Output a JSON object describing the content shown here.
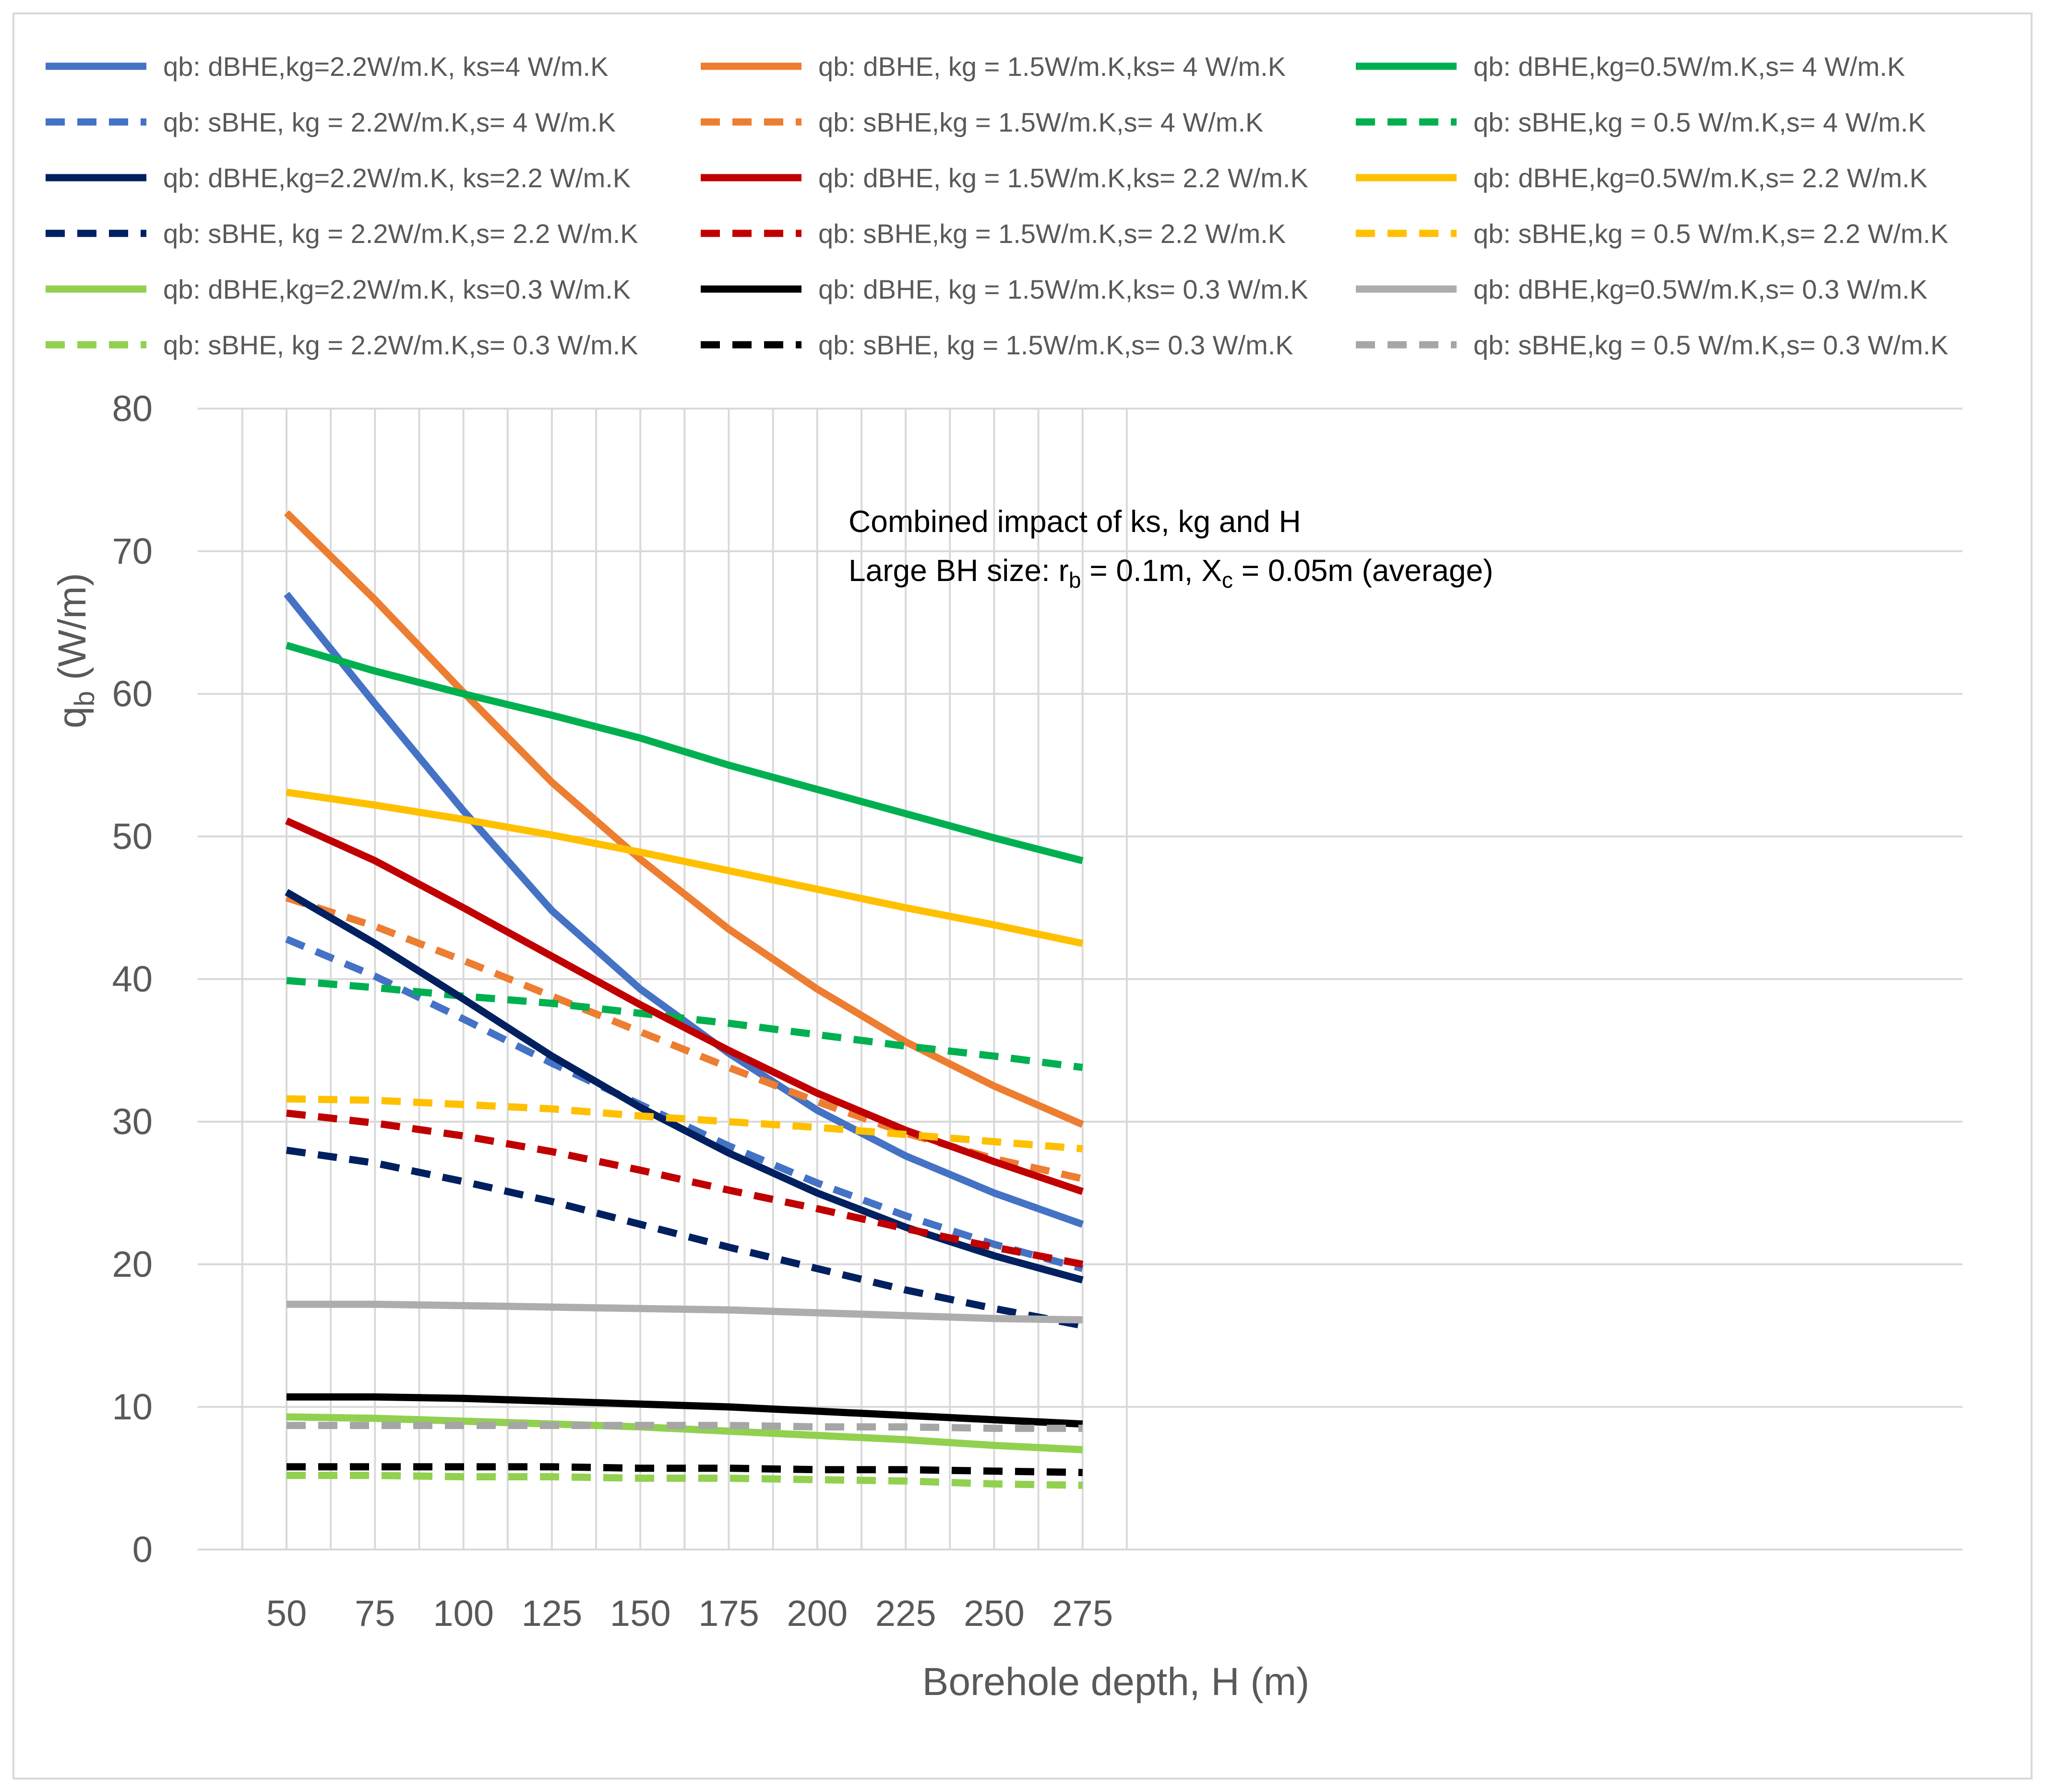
{
  "chart_data": {
    "type": "line",
    "title": "",
    "xlabel": "Borehole depth, H (m)",
    "ylabel": {
      "main": "q",
      "sub": "b",
      "unit": " (W/m)"
    },
    "x": [
      50,
      75,
      100,
      125,
      150,
      175,
      200,
      225,
      250,
      275
    ],
    "xlim": [
      37.5,
      287.5
    ],
    "ylim": [
      0,
      80
    ],
    "x_ticks": [
      50,
      75,
      100,
      125,
      150,
      175,
      200,
      225,
      250,
      275
    ],
    "y_ticks": [
      0,
      10,
      20,
      30,
      40,
      50,
      60,
      70,
      80
    ],
    "grid": true,
    "legend_position": "top",
    "annotation": {
      "line1": "Combined impact of ks, kg and H",
      "line2_a": "Large BH size: r",
      "line2_sub1": "b",
      "line2_b": " = 0.1m, X",
      "line2_sub2": "c",
      "line2_c": " = 0.05m (average)"
    },
    "series": [
      {
        "name": "qb: dBHE,kg=2.2W/m.K, ks=4 W/m.K",
        "color": "#4472C4",
        "dash": false,
        "values": [
          67.0,
          59.3,
          51.8,
          44.8,
          39.3,
          34.8,
          30.8,
          27.6,
          25.0,
          22.8
        ]
      },
      {
        "name": "qb: dBHE, kg = 1.5W/m.K,ks= 4 W/m.K",
        "color": "#ED7D31",
        "dash": false,
        "values": [
          72.7,
          66.6,
          60.1,
          53.8,
          48.4,
          43.5,
          39.3,
          35.6,
          32.5,
          29.8
        ]
      },
      {
        "name": "qb: dBHE,kg=0.5W/m.K,s= 4 W/m.K",
        "color": "#00B050",
        "dash": false,
        "values": [
          63.4,
          61.6,
          60.0,
          58.5,
          56.9,
          55.0,
          53.3,
          51.6,
          49.9,
          48.3
        ]
      },
      {
        "name": "qb: sBHE, kg = 2.2W/m.K,s= 4 W/m.K",
        "color": "#4472C4",
        "dash": true,
        "values": [
          42.8,
          40.2,
          37.2,
          34.1,
          31.2,
          28.3,
          25.7,
          23.4,
          21.4,
          19.7
        ]
      },
      {
        "name": "qb: sBHE,kg = 1.5W/m.K,s= 4 W/m.K",
        "color": "#ED7D31",
        "dash": true,
        "values": [
          45.7,
          43.7,
          41.3,
          38.8,
          36.3,
          33.8,
          31.4,
          29.2,
          27.4,
          26.0
        ]
      },
      {
        "name": "qb: sBHE,kg = 0.5 W/m.K,s= 4 W/m.K",
        "color": "#00B050",
        "dash": true,
        "values": [
          39.9,
          39.4,
          38.8,
          38.3,
          37.6,
          36.9,
          36.1,
          35.3,
          34.6,
          33.8
        ]
      },
      {
        "name": "qb: dBHE,kg=2.2W/m.K, ks=2.2 W/m.K",
        "color": "#002060",
        "dash": false,
        "values": [
          46.1,
          42.5,
          38.6,
          34.6,
          31.0,
          27.8,
          25.0,
          22.6,
          20.6,
          18.9
        ]
      },
      {
        "name": "qb: dBHE, kg = 1.5W/m.K,ks= 2.2 W/m.K",
        "color": "#C00000",
        "dash": false,
        "values": [
          51.1,
          48.3,
          45.0,
          41.6,
          38.2,
          35.0,
          32.0,
          29.4,
          27.2,
          25.1
        ]
      },
      {
        "name": "qb: dBHE,kg=0.5W/m.K,s= 2.2 W/m.K",
        "color": "#FFC000",
        "dash": false,
        "values": [
          53.1,
          52.2,
          51.2,
          50.1,
          48.9,
          47.6,
          46.3,
          45.0,
          43.8,
          42.5
        ]
      },
      {
        "name": "qb: sBHE, kg = 2.2W/m.K,s= 2.2 W/m.K",
        "color": "#002060",
        "dash": true,
        "values": [
          28.0,
          27.1,
          25.8,
          24.4,
          22.8,
          21.2,
          19.7,
          18.2,
          16.9,
          15.7
        ]
      },
      {
        "name": "qb: sBHE,kg = 1.5W/m.K,s= 2.2 W/m.K",
        "color": "#C00000",
        "dash": true,
        "values": [
          30.6,
          29.9,
          29.0,
          27.9,
          26.6,
          25.2,
          23.9,
          22.5,
          21.2,
          20.0
        ]
      },
      {
        "name": "qb: sBHE,kg = 0.5 W/m.K,s= 2.2 W/m.K",
        "color": "#FFC000",
        "dash": true,
        "values": [
          31.6,
          31.5,
          31.2,
          30.9,
          30.4,
          30.0,
          29.6,
          29.1,
          28.6,
          28.1
        ]
      },
      {
        "name": "qb: dBHE,kg=2.2W/m.K, ks=0.3 W/m.K",
        "color": "#92D050",
        "dash": false,
        "values": [
          9.3,
          9.2,
          9.0,
          8.8,
          8.6,
          8.3,
          8.0,
          7.7,
          7.3,
          7.0
        ]
      },
      {
        "name": "qb: dBHE, kg = 1.5W/m.K,ks= 0.3 W/m.K",
        "color": "#000000",
        "dash": false,
        "values": [
          10.7,
          10.7,
          10.6,
          10.4,
          10.2,
          10.0,
          9.7,
          9.4,
          9.1,
          8.8
        ]
      },
      {
        "name": "qb: dBHE,kg=0.5W/m.K,s= 0.3 W/m.K",
        "color": "#ADADAD",
        "dash": false,
        "values": [
          17.2,
          17.2,
          17.1,
          17.0,
          16.9,
          16.8,
          16.6,
          16.4,
          16.2,
          16.1
        ]
      },
      {
        "name": "qb: sBHE, kg = 2.2W/m.K,s= 0.3 W/m.K",
        "color": "#92D050",
        "dash": true,
        "values": [
          5.2,
          5.2,
          5.1,
          5.1,
          5.0,
          5.0,
          4.9,
          4.8,
          4.6,
          4.5
        ]
      },
      {
        "name": "qb: sBHE, kg = 1.5W/m.K,s= 0.3 W/m.K",
        "color": "#000000",
        "dash": true,
        "values": [
          5.8,
          5.8,
          5.8,
          5.8,
          5.7,
          5.7,
          5.6,
          5.6,
          5.5,
          5.4
        ]
      },
      {
        "name": "qb: sBHE,kg = 0.5 W/m.K,s= 0.3 W/m.K",
        "color": "#A6A6A6",
        "dash": true,
        "values": [
          8.7,
          8.7,
          8.7,
          8.7,
          8.7,
          8.7,
          8.6,
          8.6,
          8.5,
          8.5
        ]
      }
    ]
  }
}
